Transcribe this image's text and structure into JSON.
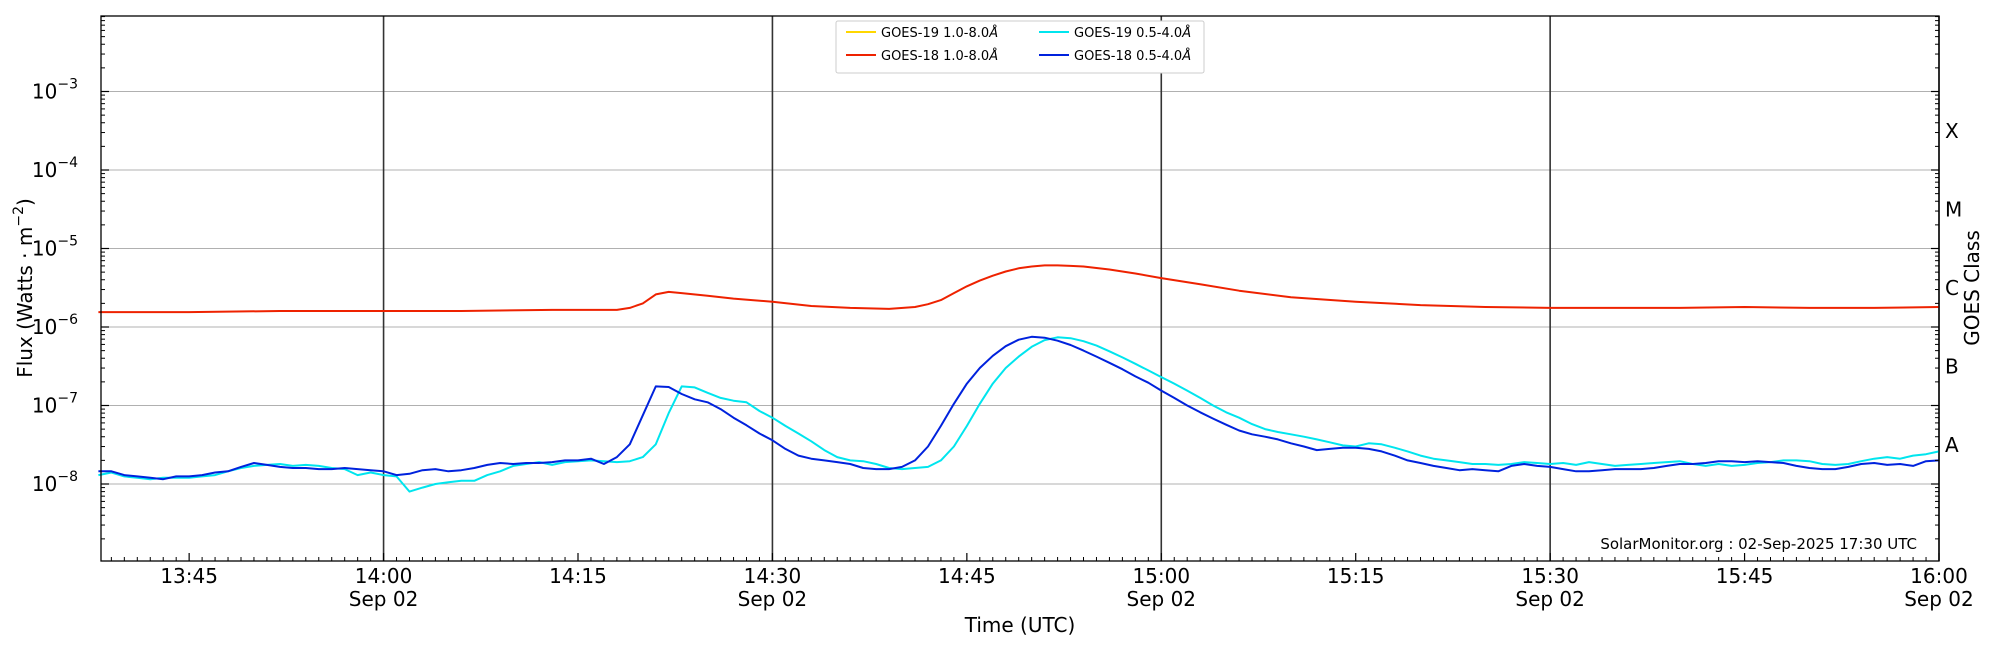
{
  "chart_data": {
    "type": "line",
    "xlabel": "Time (UTC)",
    "ylabel": "Flux (Watts · m",
    "ylabel_sup": "−2",
    "ylabel_close": ")",
    "y_scale": "log",
    "ylim": [
      1e-09,
      0.01
    ],
    "xlim": [
      "13:38",
      "16:00"
    ],
    "grid": "horizontal at decades",
    "legend_placement": "top-center",
    "y_ticks": [
      {
        "exp": -8,
        "base": "10",
        "sup": "−8"
      },
      {
        "exp": -7,
        "base": "10",
        "sup": "−7"
      },
      {
        "exp": -6,
        "base": "10",
        "sup": "−6"
      },
      {
        "exp": -5,
        "base": "10",
        "sup": "−5"
      },
      {
        "exp": -4,
        "base": "10",
        "sup": "−4"
      },
      {
        "exp": -3,
        "base": "10",
        "sup": "−3"
      }
    ],
    "x_ticks": [
      {
        "t": "13:45",
        "label": "13:45",
        "date": ""
      },
      {
        "t": "14:00",
        "label": "14:00",
        "date": "Sep 02"
      },
      {
        "t": "14:15",
        "label": "14:15",
        "date": ""
      },
      {
        "t": "14:30",
        "label": "14:30",
        "date": "Sep 02"
      },
      {
        "t": "14:45",
        "label": "14:45",
        "date": ""
      },
      {
        "t": "15:00",
        "label": "15:00",
        "date": "Sep 02"
      },
      {
        "t": "15:15",
        "label": "15:15",
        "date": ""
      },
      {
        "t": "15:30",
        "label": "15:30",
        "date": "Sep 02"
      },
      {
        "t": "15:45",
        "label": "15:45",
        "date": ""
      },
      {
        "t": "16:00",
        "label": "16:00",
        "date": "Sep 02"
      }
    ],
    "vertical_lines": [
      "14:00",
      "14:30",
      "15:00",
      "15:30",
      "16:00"
    ],
    "right_axis": {
      "label": "GOES Class",
      "classes": [
        {
          "label": "A",
          "exp": -7.5
        },
        {
          "label": "B",
          "exp": -6.5
        },
        {
          "label": "C",
          "exp": -5.5
        },
        {
          "label": "M",
          "exp": -4.5
        },
        {
          "label": "X",
          "exp": -3.5
        }
      ]
    },
    "annotation": "SolarMonitor.org : 02-Sep-2025 17:30 UTC",
    "series": [
      {
        "name": "GOES-19 1.0-8.0",
        "color": "#ffd700",
        "x": [],
        "y": []
      },
      {
        "name": "GOES-19 0.5-4.0",
        "color": "#00e5ee",
        "x": [
          "13:38",
          "13:39",
          "13:40",
          "13:41",
          "13:42",
          "13:43",
          "13:44",
          "13:45",
          "13:46",
          "13:47",
          "13:48",
          "13:49",
          "13:50",
          "13:51",
          "13:52",
          "13:53",
          "13:54",
          "13:55",
          "13:56",
          "13:57",
          "13:58",
          "13:59",
          "14:00",
          "14:01",
          "14:02",
          "14:03",
          "14:04",
          "14:05",
          "14:06",
          "14:07",
          "14:08",
          "14:09",
          "14:10",
          "14:11",
          "14:12",
          "14:13",
          "14:14",
          "14:15",
          "14:16",
          "14:17",
          "14:18",
          "14:19",
          "14:20",
          "14:21",
          "14:22",
          "14:23",
          "14:24",
          "14:25",
          "14:26",
          "14:27",
          "14:28",
          "14:29",
          "14:30",
          "14:31",
          "14:32",
          "14:33",
          "14:34",
          "14:35",
          "14:36",
          "14:37",
          "14:38",
          "14:39",
          "14:40",
          "14:41",
          "14:42",
          "14:43",
          "14:44",
          "14:45",
          "14:46",
          "14:47",
          "14:48",
          "14:49",
          "14:50",
          "14:51",
          "14:52",
          "14:53",
          "14:54",
          "14:55",
          "14:56",
          "14:57",
          "14:58",
          "14:59",
          "15:00",
          "15:01",
          "15:02",
          "15:03",
          "15:04",
          "15:05",
          "15:06",
          "15:07",
          "15:08",
          "15:09",
          "15:10",
          "15:11",
          "15:12",
          "15:13",
          "15:14",
          "15:15",
          "15:16",
          "15:17",
          "15:18",
          "15:19",
          "15:20",
          "15:21",
          "15:22",
          "15:23",
          "15:24",
          "15:25",
          "15:26",
          "15:27",
          "15:28",
          "15:29",
          "15:30",
          "15:31",
          "15:32",
          "15:33",
          "15:34",
          "15:35",
          "15:36",
          "15:37",
          "15:38",
          "15:39",
          "15:40",
          "15:41",
          "15:42",
          "15:43",
          "15:44",
          "15:45",
          "15:46",
          "15:47",
          "15:48",
          "15:49",
          "15:50",
          "15:51",
          "15:52",
          "15:53",
          "15:54",
          "15:55",
          "15:56",
          "15:57",
          "15:58",
          "15:59",
          "16:00"
        ],
        "y": [
          1.3e-08,
          1.4e-08,
          1.25e-08,
          1.2e-08,
          1.15e-08,
          1.2e-08,
          1.2e-08,
          1.2e-08,
          1.25e-08,
          1.3e-08,
          1.45e-08,
          1.6e-08,
          1.7e-08,
          1.75e-08,
          1.8e-08,
          1.7e-08,
          1.75e-08,
          1.7e-08,
          1.6e-08,
          1.55e-08,
          1.3e-08,
          1.4e-08,
          1.3e-08,
          1.25e-08,
          8e-09,
          9e-09,
          1e-08,
          1.05e-08,
          1.1e-08,
          1.1e-08,
          1.3e-08,
          1.45e-08,
          1.7e-08,
          1.8e-08,
          1.9e-08,
          1.75e-08,
          1.9e-08,
          1.95e-08,
          2e-08,
          1.95e-08,
          1.9e-08,
          1.95e-08,
          2.2e-08,
          3.2e-08,
          8e-08,
          1.75e-07,
          1.7e-07,
          1.45e-07,
          1.25e-07,
          1.15e-07,
          1.1e-07,
          8.5e-08,
          7e-08,
          5.5e-08,
          4.4e-08,
          3.5e-08,
          2.7e-08,
          2.2e-08,
          2e-08,
          1.95e-08,
          1.8e-08,
          1.6e-08,
          1.55e-08,
          1.6e-08,
          1.65e-08,
          2e-08,
          3e-08,
          5.5e-08,
          1.05e-07,
          1.9e-07,
          3e-07,
          4.2e-07,
          5.6e-07,
          6.8e-07,
          7.4e-07,
          7.2e-07,
          6.6e-07,
          5.8e-07,
          4.9e-07,
          4.1e-07,
          3.4e-07,
          2.8e-07,
          2.3e-07,
          1.9e-07,
          1.55e-07,
          1.25e-07,
          1e-07,
          8.2e-08,
          7e-08,
          5.8e-08,
          5e-08,
          4.6e-08,
          4.3e-08,
          4e-08,
          3.7e-08,
          3.4e-08,
          3.1e-08,
          3e-08,
          3.3e-08,
          3.2e-08,
          2.9e-08,
          2.6e-08,
          2.3e-08,
          2.1e-08,
          2e-08,
          1.9e-08,
          1.8e-08,
          1.8e-08,
          1.75e-08,
          1.8e-08,
          1.9e-08,
          1.85e-08,
          1.8e-08,
          1.85e-08,
          1.75e-08,
          1.9e-08,
          1.8e-08,
          1.7e-08,
          1.75e-08,
          1.8e-08,
          1.85e-08,
          1.9e-08,
          1.95e-08,
          1.8e-08,
          1.7e-08,
          1.8e-08,
          1.7e-08,
          1.75e-08,
          1.85e-08,
          1.9e-08,
          2e-08,
          2e-08,
          1.95e-08,
          1.8e-08,
          1.75e-08,
          1.8e-08,
          1.95e-08,
          2.1e-08,
          2.2e-08,
          2.1e-08,
          2.3e-08,
          2.4e-08,
          2.6e-08
        ]
      },
      {
        "name": "GOES-18 1.0-8.0",
        "color": "#ee2200",
        "x": [
          "13:38",
          "13:45",
          "13:52",
          "13:59",
          "14:06",
          "14:13",
          "14:17",
          "14:18",
          "14:19",
          "14:20",
          "14:21",
          "14:22",
          "14:23",
          "14:25",
          "14:27",
          "14:30",
          "14:33",
          "14:36",
          "14:39",
          "14:41",
          "14:42",
          "14:43",
          "14:44",
          "14:45",
          "14:46",
          "14:47",
          "14:48",
          "14:49",
          "14:50",
          "14:51",
          "14:52",
          "14:53",
          "14:54",
          "14:56",
          "14:58",
          "15:00",
          "15:03",
          "15:06",
          "15:10",
          "15:15",
          "15:20",
          "15:25",
          "15:30",
          "15:35",
          "15:40",
          "15:45",
          "15:50",
          "15:55",
          "16:00"
        ],
        "y": [
          1.55e-06,
          1.55e-06,
          1.6e-06,
          1.6e-06,
          1.6e-06,
          1.65e-06,
          1.65e-06,
          1.65e-06,
          1.75e-06,
          2e-06,
          2.6e-06,
          2.8e-06,
          2.7e-06,
          2.5e-06,
          2.3e-06,
          2.1e-06,
          1.85e-06,
          1.75e-06,
          1.7e-06,
          1.8e-06,
          1.95e-06,
          2.2e-06,
          2.7e-06,
          3.3e-06,
          3.9e-06,
          4.5e-06,
          5.1e-06,
          5.6e-06,
          5.9e-06,
          6.1e-06,
          6.1e-06,
          6e-06,
          5.9e-06,
          5.4e-06,
          4.8e-06,
          4.2e-06,
          3.5e-06,
          2.9e-06,
          2.4e-06,
          2.1e-06,
          1.9e-06,
          1.8e-06,
          1.75e-06,
          1.75e-06,
          1.75e-06,
          1.8e-06,
          1.75e-06,
          1.75e-06,
          1.8e-06
        ]
      },
      {
        "name": "GOES-18 0.5-4.0",
        "color": "#0022dd",
        "x": [
          "13:38",
          "13:39",
          "13:40",
          "13:41",
          "13:42",
          "13:43",
          "13:44",
          "13:45",
          "13:46",
          "13:47",
          "13:48",
          "13:49",
          "13:50",
          "13:51",
          "13:52",
          "13:53",
          "13:54",
          "13:55",
          "13:56",
          "13:57",
          "13:58",
          "13:59",
          "14:00",
          "14:01",
          "14:02",
          "14:03",
          "14:04",
          "14:05",
          "14:06",
          "14:07",
          "14:08",
          "14:09",
          "14:10",
          "14:11",
          "14:12",
          "14:13",
          "14:14",
          "14:15",
          "14:16",
          "14:17",
          "14:18",
          "14:19",
          "14:20",
          "14:21",
          "14:22",
          "14:23",
          "14:24",
          "14:25",
          "14:26",
          "14:27",
          "14:28",
          "14:29",
          "14:30",
          "14:31",
          "14:32",
          "14:33",
          "14:34",
          "14:35",
          "14:36",
          "14:37",
          "14:38",
          "14:39",
          "14:40",
          "14:41",
          "14:42",
          "14:43",
          "14:44",
          "14:45",
          "14:46",
          "14:47",
          "14:48",
          "14:49",
          "14:50",
          "14:51",
          "14:52",
          "14:53",
          "14:54",
          "14:55",
          "14:56",
          "14:57",
          "14:58",
          "14:59",
          "15:00",
          "15:01",
          "15:02",
          "15:03",
          "15:04",
          "15:05",
          "15:06",
          "15:07",
          "15:08",
          "15:09",
          "15:10",
          "15:11",
          "15:12",
          "15:13",
          "15:14",
          "15:15",
          "15:16",
          "15:17",
          "15:18",
          "15:19",
          "15:20",
          "15:21",
          "15:22",
          "15:23",
          "15:24",
          "15:25",
          "15:26",
          "15:27",
          "15:28",
          "15:29",
          "15:30",
          "15:31",
          "15:32",
          "15:33",
          "15:34",
          "15:35",
          "15:36",
          "15:37",
          "15:38",
          "15:39",
          "15:40",
          "15:41",
          "15:42",
          "15:43",
          "15:44",
          "15:45",
          "15:46",
          "15:47",
          "15:48",
          "15:49",
          "15:50",
          "15:51",
          "15:52",
          "15:53",
          "15:54",
          "15:55",
          "15:56",
          "15:57",
          "15:58",
          "15:59",
          "16:00"
        ],
        "y": [
          1.45e-08,
          1.45e-08,
          1.3e-08,
          1.25e-08,
          1.2e-08,
          1.15e-08,
          1.25e-08,
          1.25e-08,
          1.3e-08,
          1.4e-08,
          1.45e-08,
          1.65e-08,
          1.85e-08,
          1.75e-08,
          1.65e-08,
          1.6e-08,
          1.6e-08,
          1.55e-08,
          1.55e-08,
          1.6e-08,
          1.55e-08,
          1.5e-08,
          1.45e-08,
          1.3e-08,
          1.35e-08,
          1.5e-08,
          1.55e-08,
          1.45e-08,
          1.5e-08,
          1.6e-08,
          1.75e-08,
          1.85e-08,
          1.8e-08,
          1.85e-08,
          1.85e-08,
          1.9e-08,
          2e-08,
          2e-08,
          2.1e-08,
          1.8e-08,
          2.2e-08,
          3.2e-08,
          7.5e-08,
          1.75e-07,
          1.72e-07,
          1.4e-07,
          1.2e-07,
          1.1e-07,
          9e-08,
          7e-08,
          5.6e-08,
          4.4e-08,
          3.6e-08,
          2.8e-08,
          2.3e-08,
          2.1e-08,
          2e-08,
          1.9e-08,
          1.8e-08,
          1.6e-08,
          1.55e-08,
          1.55e-08,
          1.65e-08,
          2e-08,
          3e-08,
          5.5e-08,
          1.05e-07,
          1.9e-07,
          3e-07,
          4.3e-07,
          5.7e-07,
          6.9e-07,
          7.5e-07,
          7.3e-07,
          6.7e-07,
          5.9e-07,
          5e-07,
          4.2e-07,
          3.5e-07,
          2.9e-07,
          2.35e-07,
          1.95e-07,
          1.55e-07,
          1.25e-07,
          1e-07,
          8.2e-08,
          6.8e-08,
          5.7e-08,
          4.8e-08,
          4.3e-08,
          4e-08,
          3.7e-08,
          3.3e-08,
          3e-08,
          2.7e-08,
          2.8e-08,
          2.9e-08,
          2.9e-08,
          2.8e-08,
          2.6e-08,
          2.3e-08,
          2e-08,
          1.85e-08,
          1.7e-08,
          1.6e-08,
          1.5e-08,
          1.55e-08,
          1.5e-08,
          1.45e-08,
          1.7e-08,
          1.8e-08,
          1.7e-08,
          1.65e-08,
          1.55e-08,
          1.45e-08,
          1.45e-08,
          1.5e-08,
          1.55e-08,
          1.55e-08,
          1.55e-08,
          1.6e-08,
          1.7e-08,
          1.8e-08,
          1.8e-08,
          1.85e-08,
          1.95e-08,
          1.95e-08,
          1.9e-08,
          1.95e-08,
          1.9e-08,
          1.85e-08,
          1.7e-08,
          1.6e-08,
          1.55e-08,
          1.55e-08,
          1.65e-08,
          1.8e-08,
          1.85e-08,
          1.75e-08,
          1.8e-08,
          1.7e-08,
          1.95e-08,
          2e-08
        ]
      }
    ],
    "legend": [
      {
        "label": "GOES-19 1.0-8.0",
        "unit": "Å",
        "color": "#ffd700"
      },
      {
        "label": "GOES-19 0.5-4.0",
        "unit": "Å",
        "color": "#00e5ee"
      },
      {
        "label": "GOES-18 1.0-8.0",
        "unit": "Å",
        "color": "#ee2200"
      },
      {
        "label": "GOES-18 0.5-4.0",
        "unit": "Å",
        "color": "#0022dd"
      }
    ]
  }
}
